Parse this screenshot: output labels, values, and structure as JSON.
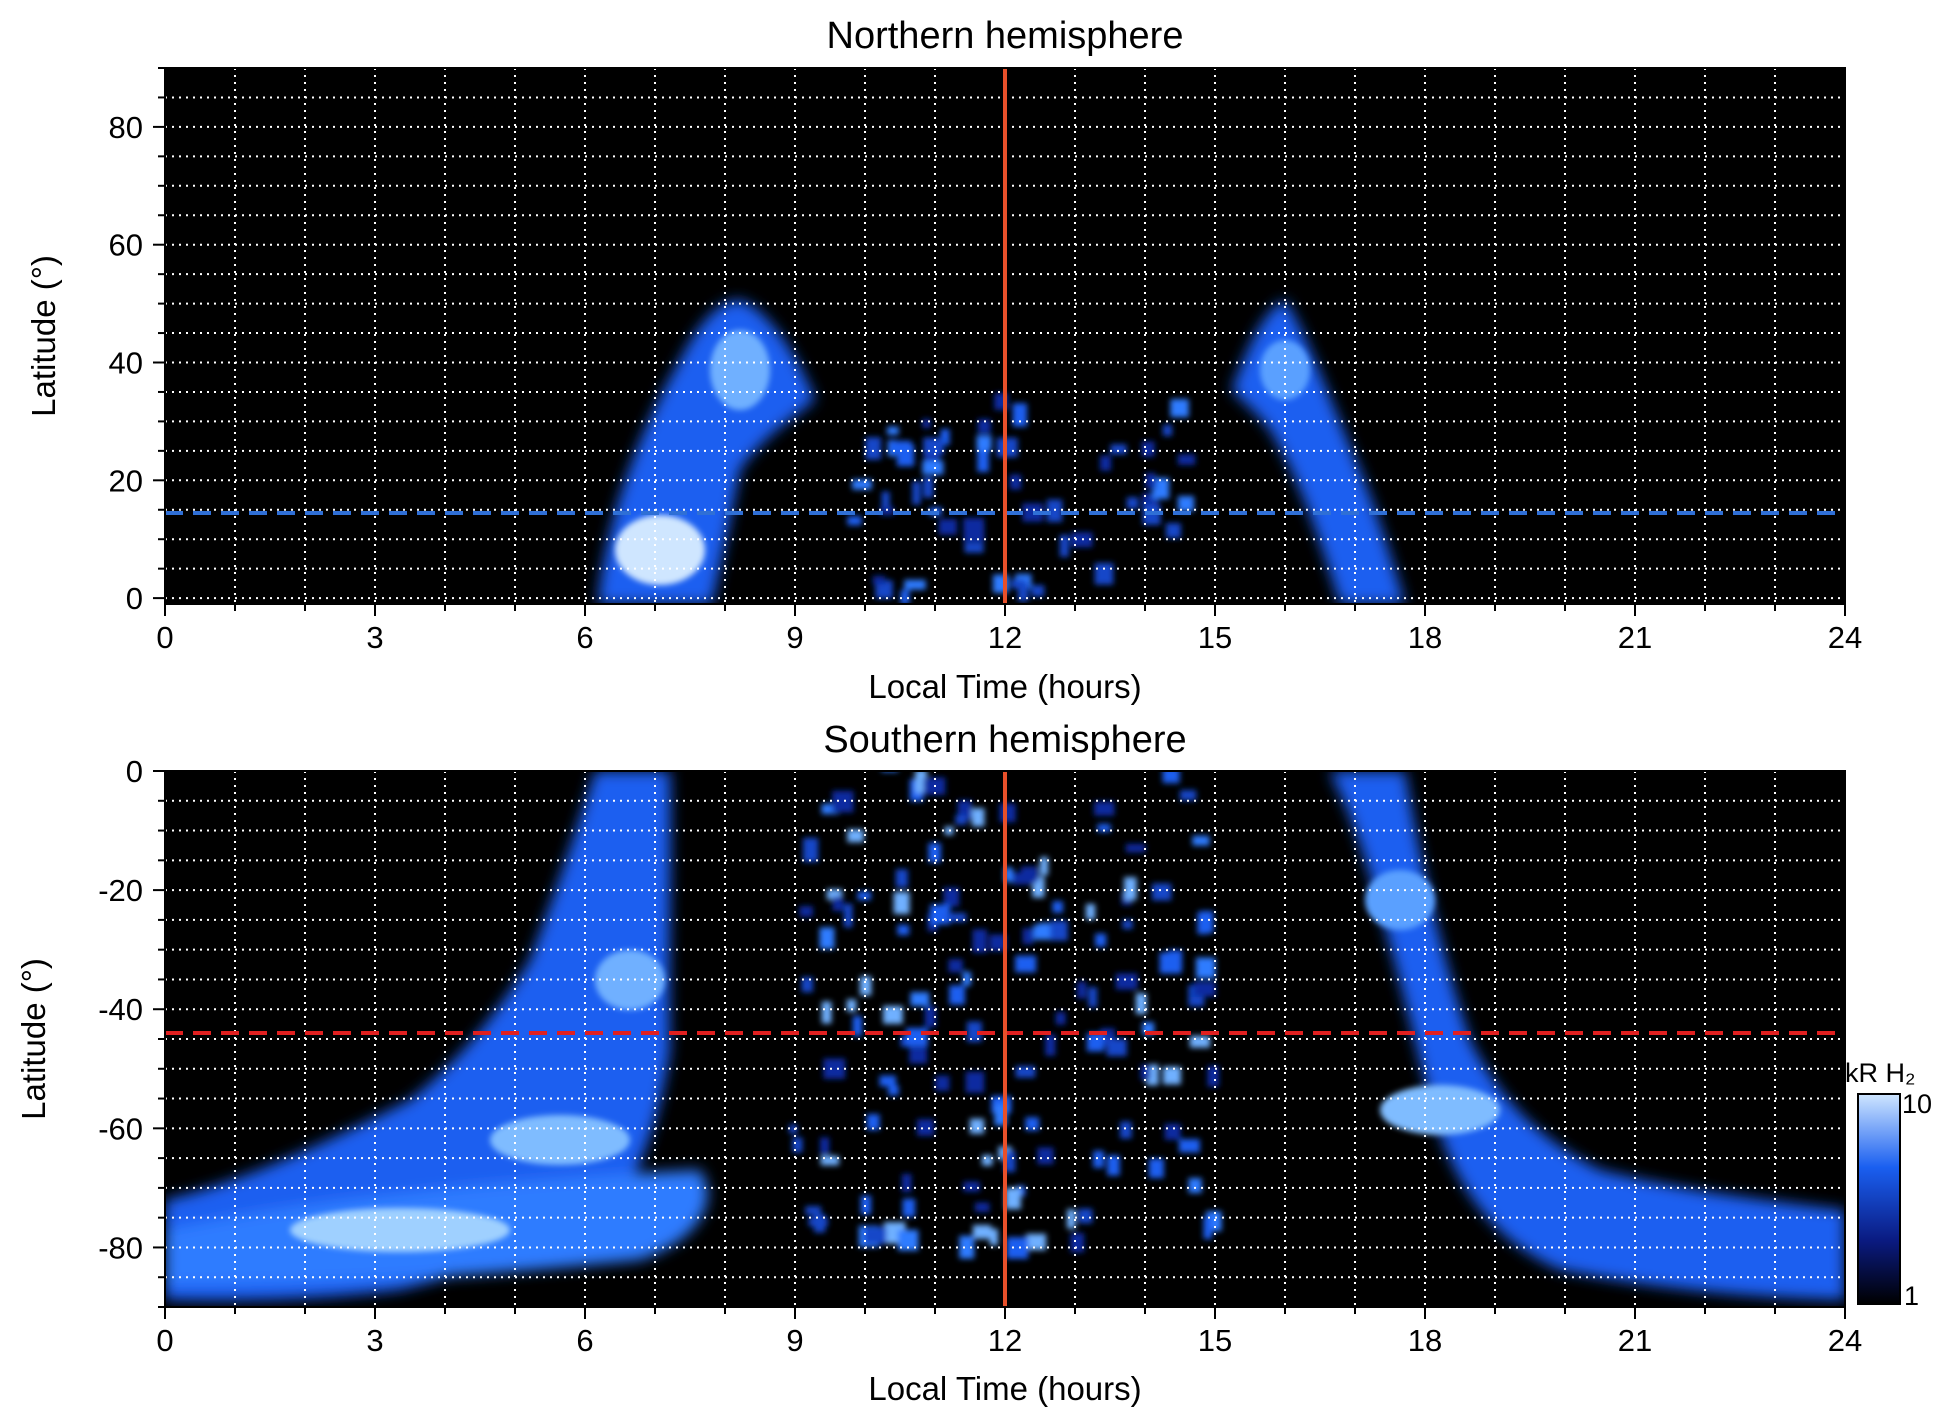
{
  "chart_data": [
    {
      "type": "heatmap",
      "title": "Northern hemisphere",
      "xlabel": "Local Time (hours)",
      "ylabel": "Latitude (°)",
      "xlim": [
        0,
        24
      ],
      "ylim": [
        -1,
        90
      ],
      "xticks": [
        0,
        3,
        6,
        9,
        12,
        15,
        18,
        21,
        24
      ],
      "yticks": [
        0,
        20,
        40,
        60,
        80
      ],
      "grid": true,
      "reference_lines": {
        "vertical_local_time": 12,
        "horizontal_latitude": 15
      },
      "colors": {
        "background": "#000000",
        "grid": "#ffffff",
        "vline": "#e8502a",
        "hline": "#2f6fd6"
      },
      "emission_regions": [
        {
          "lt_start": 6.2,
          "lt_end": 9.2,
          "lat_min": 0,
          "lat_max": 50,
          "peak": 10
        },
        {
          "lt_start": 15.4,
          "lt_end": 17.7,
          "lat_min": 0,
          "lat_max": 51,
          "peak": 6
        },
        {
          "lt_start": 9.8,
          "lt_end": 14.6,
          "lat_min": 0,
          "lat_max": 35,
          "peak": 5
        }
      ]
    },
    {
      "type": "heatmap",
      "title": "Southern hemisphere",
      "xlabel": "Local Time (hours)",
      "ylabel": "Latitude (°)",
      "xlim": [
        0,
        24
      ],
      "ylim": [
        -90,
        0
      ],
      "xticks": [
        0,
        3,
        6,
        9,
        12,
        15,
        18,
        21,
        24
      ],
      "yticks": [
        0,
        -20,
        -40,
        -60,
        -80
      ],
      "grid": true,
      "reference_lines": {
        "vertical_local_time": 12,
        "horizontal_latitude": -44
      },
      "colors": {
        "background": "#000000",
        "grid": "#ffffff",
        "vline": "#e8502a",
        "hline": "#e02020"
      },
      "emission_regions": [
        {
          "lt_start": 0,
          "lt_end": 7.5,
          "lat_min": -90,
          "lat_max": 0,
          "peak": 9
        },
        {
          "lt_start": 16.8,
          "lt_end": 24,
          "lat_min": -90,
          "lat_max": 0,
          "peak": 8
        },
        {
          "lt_start": 9,
          "lt_end": 15,
          "lat_min": -80,
          "lat_max": 0,
          "peak": 6
        }
      ],
      "colorbar": {
        "label": "kR H₂",
        "min": 1,
        "max": 10,
        "scale": "log",
        "min_label": "1",
        "max_label": "10",
        "colors": [
          "#000000",
          "#0a1a80",
          "#1a5ff0",
          "#cfe6ff"
        ]
      }
    }
  ]
}
